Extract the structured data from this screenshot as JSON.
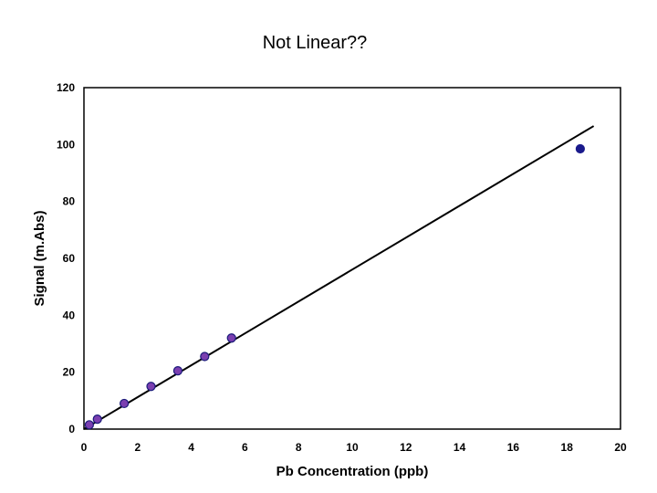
{
  "chart_data": {
    "type": "scatter",
    "title": "Not Linear??",
    "xlabel": "Pb Concentration (ppb)",
    "ylabel": "Signal (m.Abs)",
    "xlim": [
      0,
      20
    ],
    "ylim": [
      0,
      120
    ],
    "xticks": [
      0,
      2,
      4,
      6,
      8,
      10,
      12,
      14,
      16,
      18,
      20
    ],
    "yticks": [
      0,
      20,
      40,
      60,
      80,
      100,
      120
    ],
    "grid": false,
    "series": [
      {
        "points": [
          {
            "x": 0.2,
            "y": 1.5
          },
          {
            "x": 0.5,
            "y": 3.5
          },
          {
            "x": 1.5,
            "y": 9
          },
          {
            "x": 2.5,
            "y": 15
          },
          {
            "x": 3.5,
            "y": 20.5
          },
          {
            "x": 4.5,
            "y": 25.5
          },
          {
            "x": 5.5,
            "y": 32
          }
        ],
        "color": "#7b3fb0",
        "edge_color": "#1a1a7a"
      },
      {
        "points": [
          {
            "x": 18.5,
            "y": 98.5
          }
        ],
        "color": "#1a1a8c",
        "edge_color": "#1a1a8c"
      }
    ],
    "trendline": {
      "type": "linear",
      "x": [
        0,
        19
      ],
      "y": [
        0,
        106.5
      ],
      "color": "#000000"
    },
    "plot_background": "#ffffff"
  }
}
